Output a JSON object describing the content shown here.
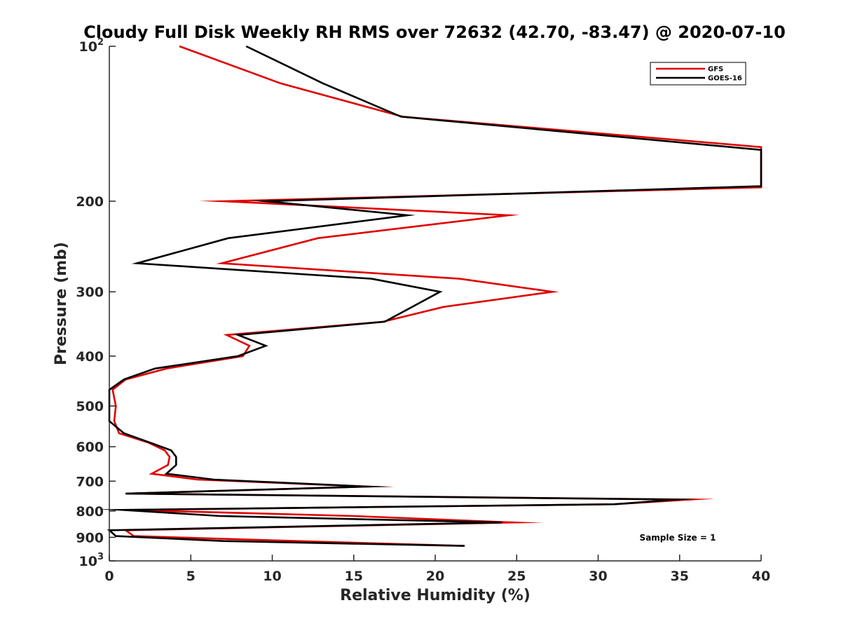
{
  "chart_data": {
    "type": "line",
    "title": "Cloudy Full Disk Weekly RH RMS over 72632 (42.70, -83.47) @ 2020-07-10",
    "xlabel": "Relative Humidity (%)",
    "ylabel": "Pressure (mb)",
    "xlim": [
      0,
      40
    ],
    "ylim": [
      100,
      1000
    ],
    "yscale": "log",
    "yreverse": true,
    "x_ticks": [
      "0",
      "5",
      "10",
      "15",
      "20",
      "25",
      "30",
      "35",
      "40"
    ],
    "y_ticks": [
      {
        "value": 100,
        "base": "10",
        "exp": "2"
      },
      {
        "value": 200,
        "label": "200"
      },
      {
        "value": 300,
        "label": "300"
      },
      {
        "value": 400,
        "label": "400"
      },
      {
        "value": 500,
        "label": "500"
      },
      {
        "value": 600,
        "label": "600"
      },
      {
        "value": 700,
        "label": "700"
      },
      {
        "value": 800,
        "label": "800"
      },
      {
        "value": 900,
        "label": "900"
      },
      {
        "value": 1000,
        "base": "10",
        "exp": "3"
      }
    ],
    "legend_position": "top-right",
    "annotation": "Sample Size = 1",
    "series": [
      {
        "name": "GFS",
        "color": "#e00000",
        "points": [
          [
            4.3,
            100
          ],
          [
            10.5,
            118
          ],
          [
            18.0,
            137
          ],
          [
            40.0,
            157
          ],
          [
            40.0,
            188
          ],
          [
            7.0,
            200
          ],
          [
            24.5,
            213
          ],
          [
            12.8,
            236
          ],
          [
            6.9,
            264
          ],
          [
            21.5,
            283
          ],
          [
            27.2,
            300
          ],
          [
            20.5,
            321
          ],
          [
            16.8,
            343
          ],
          [
            7.2,
            364
          ],
          [
            8.6,
            382
          ],
          [
            8.2,
            400
          ],
          [
            3.5,
            423
          ],
          [
            1.0,
            444
          ],
          [
            0.2,
            465
          ],
          [
            0.4,
            500
          ],
          [
            0.3,
            535
          ],
          [
            0.6,
            565
          ],
          [
            2.4,
            589
          ],
          [
            3.4,
            610
          ],
          [
            3.7,
            628
          ],
          [
            3.6,
            651
          ],
          [
            2.6,
            677
          ],
          [
            5.4,
            695
          ],
          [
            15.9,
            717
          ],
          [
            1.0,
            740
          ],
          [
            35.6,
            760
          ],
          [
            31.0,
            776
          ],
          [
            1.0,
            796
          ],
          [
            15.0,
            818
          ],
          [
            24.8,
            842
          ],
          [
            1.0,
            872
          ],
          [
            1.5,
            895
          ],
          [
            11.5,
            915
          ],
          [
            21.8,
            935
          ]
        ]
      },
      {
        "name": "GOES-16",
        "color": "#000000",
        "points": [
          [
            8.4,
            100
          ],
          [
            13.1,
            118
          ],
          [
            17.9,
            137
          ],
          [
            40.0,
            159
          ],
          [
            40.0,
            187
          ],
          [
            9.6,
            200
          ],
          [
            18.3,
            213
          ],
          [
            7.3,
            236
          ],
          [
            1.7,
            264
          ],
          [
            16.1,
            283
          ],
          [
            20.3,
            300
          ],
          [
            16.9,
            343
          ],
          [
            7.9,
            364
          ],
          [
            9.6,
            382
          ],
          [
            7.9,
            400
          ],
          [
            2.8,
            423
          ],
          [
            0.9,
            444
          ],
          [
            0.0,
            465
          ],
          [
            0.0,
            500
          ],
          [
            0.0,
            535
          ],
          [
            0.9,
            565
          ],
          [
            2.5,
            589
          ],
          [
            3.8,
            610
          ],
          [
            4.1,
            628
          ],
          [
            4.1,
            651
          ],
          [
            3.5,
            677
          ],
          [
            6.4,
            695
          ],
          [
            15.8,
            717
          ],
          [
            1.0,
            740
          ],
          [
            34.8,
            760
          ],
          [
            31.0,
            776
          ],
          [
            0.8,
            796
          ],
          [
            6.8,
            818
          ],
          [
            24.1,
            842
          ],
          [
            0.0,
            872
          ],
          [
            0.4,
            895
          ],
          [
            7.0,
            915
          ],
          [
            21.8,
            935
          ]
        ]
      }
    ]
  }
}
